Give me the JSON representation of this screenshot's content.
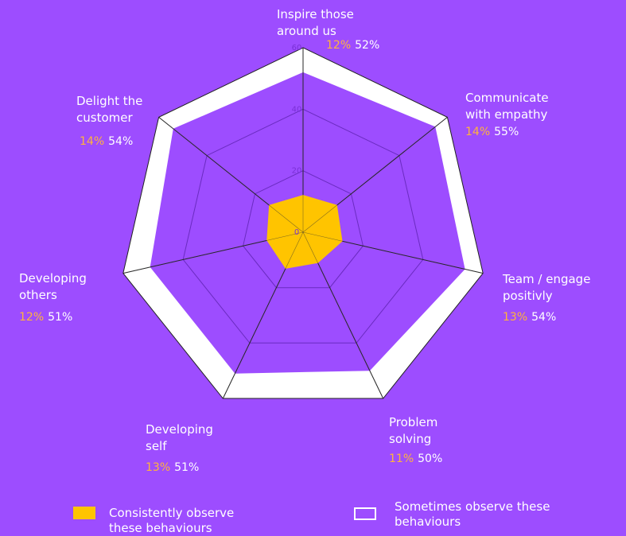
{
  "chart_data": {
    "type": "radar",
    "categories": [
      "Inspire those around us",
      "Communicate with empathy",
      "Team / engage positivly",
      "Problem solving",
      "Developing self",
      "Developing others",
      "Delight the customer"
    ],
    "series": [
      {
        "name": "Consistently observe these behaviours",
        "color": "#ffc400",
        "values": [
          12,
          14,
          13,
          11,
          13,
          12,
          14
        ],
        "value_labels": [
          "12%",
          "14%",
          "13%",
          "11%",
          "13%",
          "12%",
          "14%"
        ]
      },
      {
        "name": "Sometimes observe these behaviours",
        "color": "#ffffff",
        "values": [
          52,
          55,
          54,
          50,
          51,
          51,
          54
        ],
        "value_labels": [
          "52%",
          "55%",
          "54%",
          "50%",
          "51%",
          "51%",
          "54%"
        ]
      }
    ],
    "rlim": [
      0,
      60
    ],
    "rticks": [
      0,
      20,
      40,
      60
    ],
    "grid": true
  }
}
